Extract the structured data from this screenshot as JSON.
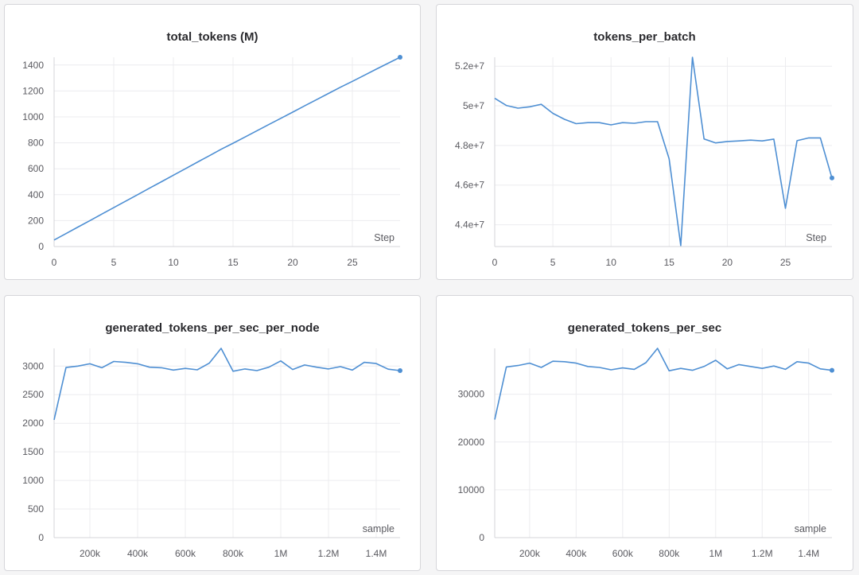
{
  "chart_data": [
    {
      "type": "line",
      "title": "total_tokens (M)",
      "xlabel": "Step",
      "ylabel": "",
      "xlim": [
        0,
        29
      ],
      "ylim": [
        0,
        1460
      ],
      "x_ticks": [
        0,
        5,
        10,
        15,
        20,
        25
      ],
      "x_tick_labels": [
        "0",
        "5",
        "10",
        "15",
        "20",
        "25"
      ],
      "y_ticks": [
        0,
        200,
        400,
        600,
        800,
        1000,
        1200,
        1400
      ],
      "y_tick_labels": [
        "0",
        "200",
        "400",
        "600",
        "800",
        "1000",
        "1200",
        "1400"
      ],
      "grid": true,
      "color": "#4e8fd3",
      "series": [
        {
          "x": [
            0,
            1,
            2,
            3,
            4,
            5,
            6,
            7,
            8,
            9,
            10,
            11,
            12,
            13,
            14,
            15,
            16,
            17,
            18,
            19,
            20,
            21,
            22,
            23,
            24,
            25,
            26,
            27,
            28,
            29
          ],
          "values": [
            50,
            100,
            150,
            200,
            250,
            300,
            350,
            400,
            450,
            500,
            550,
            600,
            650,
            700,
            750,
            797,
            845,
            893,
            941,
            989,
            1037,
            1085,
            1133,
            1181,
            1229,
            1274,
            1321,
            1368,
            1414,
            1460
          ]
        }
      ]
    },
    {
      "type": "line",
      "title": "tokens_per_batch",
      "xlabel": "Step",
      "ylabel": "",
      "xlim": [
        0,
        29
      ],
      "ylim": [
        42900000,
        52450000
      ],
      "x_ticks": [
        0,
        5,
        10,
        15,
        20,
        25
      ],
      "x_tick_labels": [
        "0",
        "5",
        "10",
        "15",
        "20",
        "25"
      ],
      "y_ticks": [
        44000000,
        46000000,
        48000000,
        50000000,
        52000000
      ],
      "y_tick_labels": [
        "4.4e+7",
        "4.6e+7",
        "4.8e+7",
        "5e+7",
        "5.2e+7"
      ],
      "grid": true,
      "color": "#4e8fd3",
      "series": [
        {
          "x": [
            0,
            1,
            2,
            3,
            4,
            5,
            6,
            7,
            8,
            9,
            10,
            11,
            12,
            13,
            14,
            15,
            16,
            17,
            18,
            19,
            20,
            21,
            22,
            23,
            24,
            25,
            26,
            27,
            28,
            29
          ],
          "values": [
            50380000,
            50020000,
            49880000,
            49950000,
            50080000,
            49620000,
            49320000,
            49100000,
            49150000,
            49150000,
            49040000,
            49150000,
            49120000,
            49200000,
            49200000,
            47320000,
            42950000,
            52450000,
            48330000,
            48130000,
            48200000,
            48230000,
            48270000,
            48230000,
            48320000,
            44830000,
            48240000,
            48380000,
            48380000,
            46360000
          ]
        }
      ]
    },
    {
      "type": "line",
      "title": "generated_tokens_per_sec_per_node",
      "xlabel": "sample",
      "ylabel": "",
      "xlim": [
        50000,
        1500000
      ],
      "ylim": [
        0,
        3310
      ],
      "x_ticks": [
        200000,
        400000,
        600000,
        800000,
        1000000,
        1200000,
        1400000
      ],
      "x_tick_labels": [
        "200k",
        "400k",
        "600k",
        "800k",
        "1M",
        "1.2M",
        "1.4M"
      ],
      "y_ticks": [
        0,
        500,
        1000,
        1500,
        2000,
        2500,
        3000
      ],
      "y_tick_labels": [
        "0",
        "500",
        "1000",
        "1500",
        "2000",
        "2500",
        "3000"
      ],
      "grid": true,
      "color": "#4e8fd3",
      "series": [
        {
          "x": [
            50000,
            100000,
            150000,
            200000,
            250000,
            300000,
            350000,
            400000,
            450000,
            500000,
            550000,
            600000,
            650000,
            700000,
            750000,
            800000,
            850000,
            900000,
            950000,
            1000000,
            1050000,
            1100000,
            1150000,
            1200000,
            1250000,
            1300000,
            1350000,
            1400000,
            1450000,
            1500000
          ],
          "values": [
            2060,
            2975,
            3000,
            3040,
            2970,
            3080,
            3065,
            3040,
            2980,
            2970,
            2930,
            2960,
            2935,
            3050,
            3310,
            2910,
            2950,
            2920,
            2980,
            3090,
            2940,
            3020,
            2980,
            2950,
            2990,
            2930,
            3065,
            3045,
            2945,
            2920
          ]
        }
      ]
    },
    {
      "type": "line",
      "title": "generated_tokens_per_sec",
      "xlabel": "sample",
      "ylabel": "",
      "xlim": [
        50000,
        1500000
      ],
      "ylim": [
        0,
        39600
      ],
      "x_ticks": [
        200000,
        400000,
        600000,
        800000,
        1000000,
        1200000,
        1400000
      ],
      "x_tick_labels": [
        "200k",
        "400k",
        "600k",
        "800k",
        "1M",
        "1.2M",
        "1.4M"
      ],
      "y_ticks": [
        0,
        10000,
        20000,
        30000
      ],
      "y_tick_labels": [
        "0",
        "10000",
        "20000",
        "30000"
      ],
      "grid": true,
      "color": "#4e8fd3",
      "series": [
        {
          "x": [
            50000,
            100000,
            150000,
            200000,
            250000,
            300000,
            350000,
            400000,
            450000,
            500000,
            550000,
            600000,
            650000,
            700000,
            750000,
            800000,
            850000,
            900000,
            950000,
            1000000,
            1050000,
            1100000,
            1150000,
            1200000,
            1250000,
            1300000,
            1350000,
            1400000,
            1450000,
            1500000
          ],
          "values": [
            24700,
            35700,
            36000,
            36500,
            35600,
            36900,
            36800,
            36500,
            35800,
            35600,
            35100,
            35500,
            35200,
            36600,
            39600,
            34900,
            35400,
            35000,
            35800,
            37100,
            35300,
            36200,
            35800,
            35400,
            35900,
            35200,
            36800,
            36500,
            35300,
            35000
          ]
        }
      ]
    }
  ]
}
